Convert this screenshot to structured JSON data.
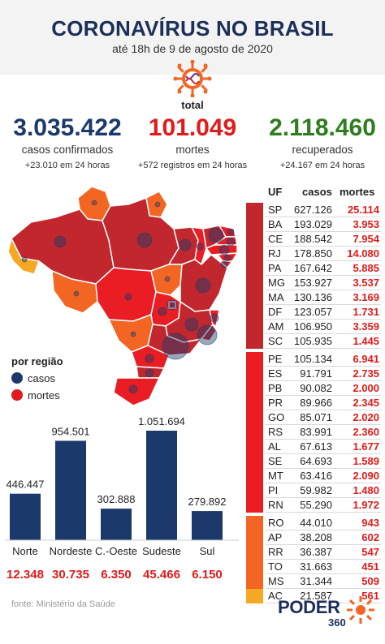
{
  "header": {
    "title": "CORONAVÍRUS NO BRASIL",
    "subtitle": "até 18h de 9 de agosto de 2020"
  },
  "total_label": "total",
  "stats": {
    "confirmed": {
      "value": "3.035.422",
      "label": "casos confirmados",
      "sub": "+23.010 em 24 horas"
    },
    "deaths": {
      "value": "101.049",
      "label": "mortes",
      "sub": "+572 registros em 24 horas"
    },
    "recovered": {
      "value": "2.118.460",
      "label": "recuperados",
      "sub": "+24.167 em 24 horas"
    }
  },
  "legend": {
    "title": "por região",
    "cases": "casos",
    "deaths": "mortes"
  },
  "table": {
    "headers": {
      "uf": "UF",
      "cases": "casos",
      "deaths": "mortes"
    },
    "rows": [
      {
        "uf": "SP",
        "cases": "627.126",
        "deaths": "25.114",
        "color": "#c1272d"
      },
      {
        "uf": "BA",
        "cases": "193.029",
        "deaths": "3.953",
        "color": "#c1272d"
      },
      {
        "uf": "CE",
        "cases": "188.542",
        "deaths": "7.954",
        "color": "#c1272d"
      },
      {
        "uf": "RJ",
        "cases": "178.850",
        "deaths": "14.080",
        "color": "#c1272d"
      },
      {
        "uf": "PA",
        "cases": "167.642",
        "deaths": "5.885",
        "color": "#c1272d"
      },
      {
        "uf": "MG",
        "cases": "153.927",
        "deaths": "3.537",
        "color": "#c1272d"
      },
      {
        "uf": "MA",
        "cases": "130.136",
        "deaths": "3.169",
        "color": "#c1272d"
      },
      {
        "uf": "DF",
        "cases": "123.057",
        "deaths": "1.731",
        "color": "#c1272d"
      },
      {
        "uf": "AM",
        "cases": "106.950",
        "deaths": "3.359",
        "color": "#c1272d"
      },
      {
        "uf": "SC",
        "cases": "105.935",
        "deaths": "1.445",
        "color": "#c1272d"
      },
      {
        "uf": "PE",
        "cases": "105.134",
        "deaths": "6.941",
        "color": "#ea1c24"
      },
      {
        "uf": "ES",
        "cases": "91.791",
        "deaths": "2.735",
        "color": "#ea1c24"
      },
      {
        "uf": "PB",
        "cases": "90.082",
        "deaths": "2.000",
        "color": "#ea1c24"
      },
      {
        "uf": "PR",
        "cases": "89.966",
        "deaths": "2.345",
        "color": "#ea1c24"
      },
      {
        "uf": "GO",
        "cases": "85.071",
        "deaths": "2.020",
        "color": "#ea1c24"
      },
      {
        "uf": "RS",
        "cases": "83.991",
        "deaths": "2.360",
        "color": "#ea1c24"
      },
      {
        "uf": "AL",
        "cases": "67.613",
        "deaths": "1.677",
        "color": "#ea1c24"
      },
      {
        "uf": "SE",
        "cases": "64.693",
        "deaths": "1.589",
        "color": "#ea1c24"
      },
      {
        "uf": "MT",
        "cases": "63.416",
        "deaths": "2.090",
        "color": "#ea1c24"
      },
      {
        "uf": "PI",
        "cases": "59.982",
        "deaths": "1.480",
        "color": "#ea1c24"
      },
      {
        "uf": "RN",
        "cases": "55.290",
        "deaths": "1.972",
        "color": "#ea1c24"
      },
      {
        "uf": "RO",
        "cases": "44.010",
        "deaths": "943",
        "color": "#f26522"
      },
      {
        "uf": "AP",
        "cases": "38.208",
        "deaths": "602",
        "color": "#f26522"
      },
      {
        "uf": "RR",
        "cases": "36.387",
        "deaths": "547",
        "color": "#f26522"
      },
      {
        "uf": "TO",
        "cases": "31.663",
        "deaths": "451",
        "color": "#f26522"
      },
      {
        "uf": "MS",
        "cases": "31.344",
        "deaths": "509",
        "color": "#f26522"
      },
      {
        "uf": "AC",
        "cases": "21.587",
        "deaths": "561",
        "color": "#f7a823"
      }
    ]
  },
  "chart_data": {
    "type": "bar",
    "categories": [
      "Norte",
      "Nordeste",
      "C.-Oeste",
      "Sudeste",
      "Sul"
    ],
    "values": [
      446447,
      954501,
      302888,
      1051694,
      279892
    ],
    "value_labels": [
      "446.447",
      "954.501",
      "302.888",
      "1.051.694",
      "279.892"
    ],
    "deaths_labels": [
      "12.348",
      "30.735",
      "6.350",
      "45.466",
      "6.150"
    ],
    "title": "",
    "xlabel": "",
    "ylabel": "",
    "ylim": [
      0,
      1051694
    ],
    "bar_color": "#1b3a6b",
    "deaths_color": "#e11a1a"
  },
  "footer": {
    "source": "fonte: Ministério da Saúde",
    "logo": "PODER",
    "logo_sub": "360"
  },
  "colors": {
    "title": "#1b2f59",
    "cases": "#1b3a6b",
    "deaths": "#e11a1a",
    "recovered": "#2e7d1e"
  }
}
